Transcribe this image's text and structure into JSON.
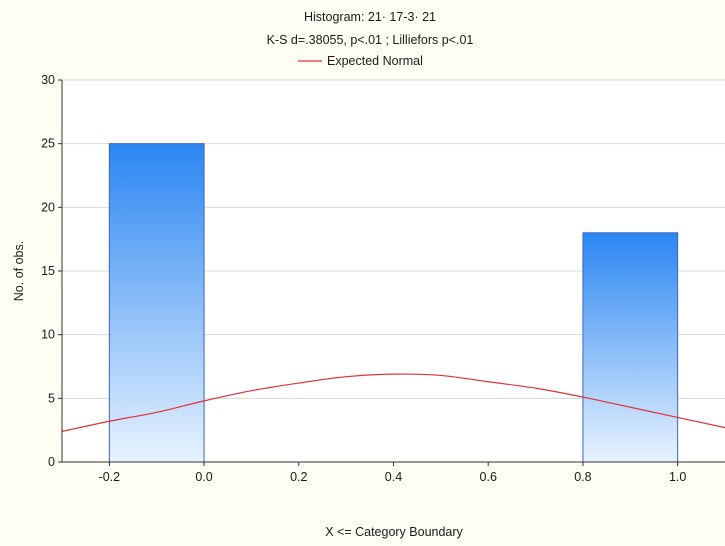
{
  "chart_data": {
    "type": "bar",
    "title": "Histogram: 21· 17-3· 21",
    "subtitle": "K-S d=.38055, p<.01 ; Lilliefors p<.01",
    "legend": [
      {
        "label": "Expected Normal",
        "color": "#e0303a"
      }
    ],
    "legend_placement": "top-center",
    "xlabel": "X <= Category Boundary",
    "ylabel": "No. of obs.",
    "xlim": [
      -0.3,
      1.1
    ],
    "ylim": [
      0,
      30
    ],
    "x_ticks": [
      -0.2,
      0.0,
      0.2,
      0.4,
      0.6,
      0.8,
      1.0
    ],
    "x_tick_labels": [
      "-0.2",
      "0.0",
      "0.2",
      "0.4",
      "0.6",
      "0.8",
      "1.0"
    ],
    "y_ticks": [
      0,
      5,
      10,
      15,
      20,
      25,
      30
    ],
    "y_tick_labels": [
      "0",
      "5",
      "10",
      "15",
      "20",
      "25",
      "30"
    ],
    "grid": true,
    "bins": [
      {
        "x0": -0.2,
        "x1": 0.0,
        "count": 25
      },
      {
        "x0": 0.8,
        "x1": 1.0,
        "count": 18
      }
    ],
    "expected_normal": {
      "x": [
        -0.3,
        -0.2,
        -0.1,
        0.0,
        0.1,
        0.2,
        0.3,
        0.4,
        0.5,
        0.6,
        0.7,
        0.8,
        0.9,
        1.0,
        1.1
      ],
      "y": [
        2.4,
        3.2,
        3.9,
        4.8,
        5.6,
        6.2,
        6.7,
        6.9,
        6.8,
        6.3,
        5.8,
        5.1,
        4.3,
        3.5,
        2.7
      ]
    },
    "colors": {
      "bar_top": "#2a86f2",
      "bar_bottom": "#e8f3fe",
      "bar_stroke": "#3f63c6",
      "curve": "#e0303a",
      "background": "#fffef4",
      "plot_background": "#ffffff"
    }
  }
}
